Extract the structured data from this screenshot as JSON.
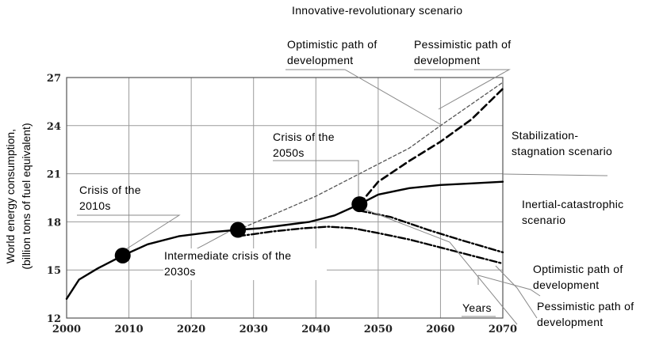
{
  "chart_data": {
    "type": "line",
    "title": "",
    "xlabel": "Years",
    "ylabel": "World energy consumption,",
    "ylabel_line2": "(billion tons of fuel equivalent)",
    "xlim": [
      2000,
      2070
    ],
    "ylim": [
      12,
      27
    ],
    "x_ticks": [
      "2000",
      "2010",
      "2020",
      "2030",
      "2040",
      "2050",
      "2060",
      "2070"
    ],
    "y_ticks": [
      "12",
      "15",
      "18",
      "21",
      "24",
      "27"
    ],
    "grid": true,
    "series": [
      {
        "style": "solid",
        "x": [
          2000,
          2002,
          2005,
          2009,
          2013,
          2018,
          2023,
          2027.5,
          2031,
          2035,
          2039,
          2043,
          2047
        ],
        "y": [
          13.2,
          14.4,
          15.1,
          15.9,
          16.6,
          17.1,
          17.35,
          17.5,
          17.6,
          17.8,
          18.0,
          18.4,
          19.1
        ]
      },
      {
        "style": "solid",
        "x": [
          2047,
          2050,
          2055,
          2060,
          2065,
          2070
        ],
        "y": [
          19.1,
          19.7,
          20.1,
          20.3,
          20.4,
          20.5
        ]
      },
      {
        "style": "dashed-thin",
        "x": [
          2027.5,
          2040,
          2047,
          2055,
          2060,
          2070
        ],
        "y": [
          17.5,
          19.6,
          21.0,
          22.6,
          24.0,
          26.7
        ]
      },
      {
        "style": "dashed",
        "x": [
          2047,
          2050,
          2055,
          2060,
          2065,
          2070
        ],
        "y": [
          19.1,
          20.5,
          21.8,
          23.0,
          24.4,
          26.3
        ]
      },
      {
        "style": "dashdot",
        "x": [
          2027.5,
          2033,
          2038,
          2042,
          2046,
          2050,
          2055,
          2060,
          2065,
          2070
        ],
        "y": [
          17.1,
          17.4,
          17.6,
          17.7,
          17.6,
          17.3,
          16.9,
          16.4,
          15.9,
          15.4
        ]
      },
      {
        "style": "dashdot",
        "x": [
          2047,
          2052,
          2058,
          2063,
          2070
        ],
        "y": [
          18.7,
          18.3,
          17.5,
          16.9,
          16.1
        ]
      }
    ],
    "crisis_points": [
      {
        "x": 2009,
        "y": 15.9
      },
      {
        "x": 2027.5,
        "y": 17.5
      },
      {
        "x": 2047,
        "y": 19.1
      }
    ],
    "annotations": [
      {
        "lines": [
          "Innovative-revolutionary scenario"
        ]
      },
      {
        "lines": [
          "Optimistic path of",
          "development"
        ]
      },
      {
        "lines": [
          "Pessimistic path of",
          "development"
        ]
      },
      {
        "lines": [
          "Crisis of the",
          "2050s"
        ]
      },
      {
        "lines": [
          "Stabilization-",
          "stagnation scenario"
        ]
      },
      {
        "lines": [
          "Inertial-catastrophic",
          "scenario"
        ]
      },
      {
        "lines": [
          "Crisis of the",
          "2010s"
        ]
      },
      {
        "lines": [
          "Intermediate crisis of the",
          "2030s"
        ]
      },
      {
        "lines": [
          "Optimistic path of",
          "development"
        ]
      },
      {
        "lines": [
          "Pessimistic path of",
          "development"
        ]
      },
      {
        "lines": [
          "Years"
        ]
      }
    ]
  }
}
